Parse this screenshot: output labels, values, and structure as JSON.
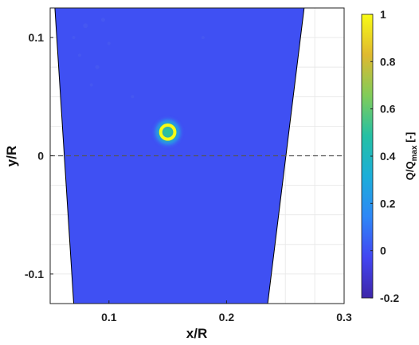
{
  "chart_data": {
    "type": "heatmap",
    "title": "",
    "xlabel": "x/R",
    "ylabel": "y/R",
    "xlim": [
      0.05,
      0.3
    ],
    "ylim": [
      -0.125,
      0.125
    ],
    "x_ticks": [
      0.1,
      0.2,
      0.3
    ],
    "x_tick_labels": [
      "0.1",
      "0.2",
      "0.3"
    ],
    "y_ticks": [
      -0.1,
      0,
      0.1
    ],
    "y_tick_labels": [
      "-0.1",
      "0",
      "0.1"
    ],
    "grid": true,
    "reference_line": {
      "y": 0,
      "style": "dashed"
    },
    "measurement_region": {
      "left_edge": [
        [
          0.054,
          0.125
        ],
        [
          0.07,
          -0.125
        ]
      ],
      "right_edge": [
        [
          0.266,
          0.125
        ],
        [
          0.235,
          -0.125
        ]
      ]
    },
    "background_value": 0.0,
    "hotspot": {
      "x": 0.15,
      "y": 0.02,
      "peak_value": 1.0,
      "shape": "ring",
      "radius_xr": 0.006
    },
    "colorbar": {
      "label_main": "Q/Q",
      "label_sub": "max",
      "label_unit": " [-]",
      "colormap": "parula",
      "min": -0.2,
      "max": 1,
      "ticks": [
        -0.2,
        0,
        0.2,
        0.4,
        0.6,
        0.8,
        1
      ],
      "tick_labels": [
        "-0.2",
        "0",
        "0.2",
        "0.4",
        "0.6",
        "0.8",
        "1"
      ],
      "colors": [
        "#3e26a8",
        "#4245f2",
        "#2e87f7",
        "#1caed9",
        "#25c0a4",
        "#81cc59",
        "#dfb92f",
        "#f9fb14"
      ]
    }
  }
}
